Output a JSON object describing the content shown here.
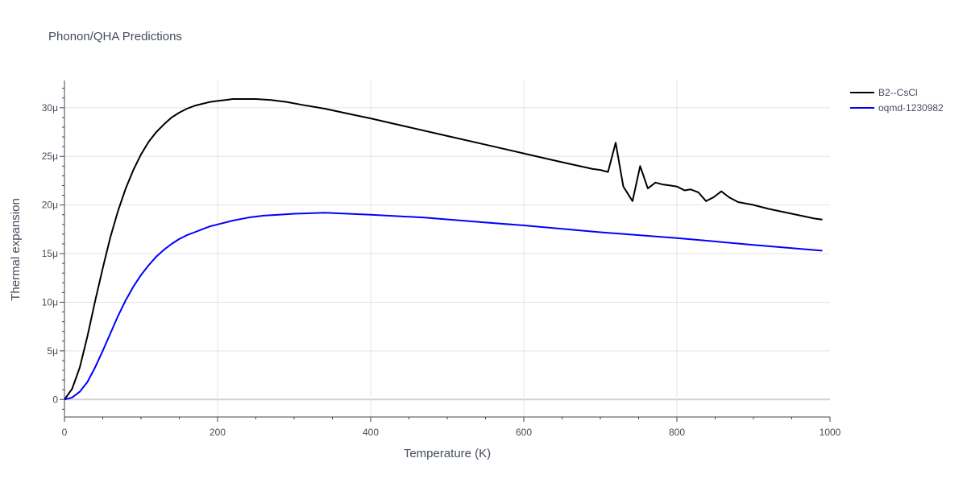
{
  "chart_data": {
    "type": "line",
    "title": "Phonon/QHA Predictions",
    "xlabel": "Temperature (K)",
    "ylabel": "Thermal expansion",
    "xlim": [
      0,
      1000
    ],
    "ylim": [
      -1.8e-06,
      3.28e-05
    ],
    "x_ticks": [
      0,
      200,
      400,
      600,
      800,
      1000
    ],
    "x_tick_labels": [
      "0",
      "200",
      "400",
      "600",
      "800",
      "1000"
    ],
    "y_ticks": [
      0,
      5e-06,
      1e-05,
      1.5e-05,
      2e-05,
      2.5e-05,
      3e-05
    ],
    "y_tick_labels": [
      "0",
      "5μ",
      "10μ",
      "15μ",
      "20μ",
      "25μ",
      "30μ"
    ],
    "grid": true,
    "legend_position": "top-right",
    "series": [
      {
        "name": "B2--CsCl",
        "color": "#000000",
        "x": [
          0,
          10,
          20,
          30,
          40,
          50,
          60,
          70,
          80,
          90,
          100,
          110,
          120,
          130,
          140,
          150,
          160,
          170,
          180,
          190,
          200,
          210,
          220,
          230,
          240,
          250,
          270,
          290,
          310,
          340,
          370,
          400,
          450,
          500,
          550,
          600,
          650,
          690,
          700,
          710,
          720,
          730,
          742,
          752,
          762,
          772,
          782,
          792,
          800,
          810,
          818,
          828,
          838,
          848,
          858,
          868,
          880,
          900,
          920,
          950,
          980,
          990
        ],
        "y": [
          0,
          1.1e-06,
          3.3e-06,
          6.5e-06,
          1.01e-05,
          1.35e-05,
          1.67e-05,
          1.94e-05,
          2.17e-05,
          2.36e-05,
          2.52e-05,
          2.65e-05,
          2.75e-05,
          2.83e-05,
          2.9e-05,
          2.95e-05,
          2.99e-05,
          3.02e-05,
          3.04e-05,
          3.06e-05,
          3.07e-05,
          3.08e-05,
          3.09e-05,
          3.09e-05,
          3.09e-05,
          3.09e-05,
          3.08e-05,
          3.06e-05,
          3.03e-05,
          2.99e-05,
          2.94e-05,
          2.89e-05,
          2.8e-05,
          2.71e-05,
          2.62e-05,
          2.53e-05,
          2.44e-05,
          2.37e-05,
          2.36e-05,
          2.34e-05,
          2.64e-05,
          2.19e-05,
          2.04e-05,
          2.4e-05,
          2.17e-05,
          2.23e-05,
          2.21e-05,
          2.2e-05,
          2.19e-05,
          2.15e-05,
          2.16e-05,
          2.13e-05,
          2.04e-05,
          2.08e-05,
          2.14e-05,
          2.08e-05,
          2.03e-05,
          2e-05,
          1.96e-05,
          1.91e-05,
          1.86e-05,
          1.85e-05
        ]
      },
      {
        "name": "oqmd-1230982",
        "color": "#0000ff",
        "x": [
          0,
          10,
          20,
          30,
          40,
          50,
          60,
          70,
          80,
          90,
          100,
          110,
          120,
          130,
          140,
          150,
          160,
          170,
          180,
          190,
          200,
          220,
          240,
          260,
          280,
          300,
          340,
          400,
          470,
          550,
          600,
          700,
          800,
          900,
          990
        ],
        "y": [
          0,
          2e-07,
          8e-07,
          1.8e-06,
          3.3e-06,
          5e-06,
          6.8e-06,
          8.6e-06,
          1.02e-05,
          1.16e-05,
          1.28e-05,
          1.38e-05,
          1.47e-05,
          1.54e-05,
          1.6e-05,
          1.65e-05,
          1.69e-05,
          1.72e-05,
          1.75e-05,
          1.78e-05,
          1.8e-05,
          1.84e-05,
          1.87e-05,
          1.89e-05,
          1.9e-05,
          1.91e-05,
          1.92e-05,
          1.9e-05,
          1.87e-05,
          1.82e-05,
          1.79e-05,
          1.72e-05,
          1.66e-05,
          1.59e-05,
          1.53e-05
        ]
      }
    ]
  }
}
